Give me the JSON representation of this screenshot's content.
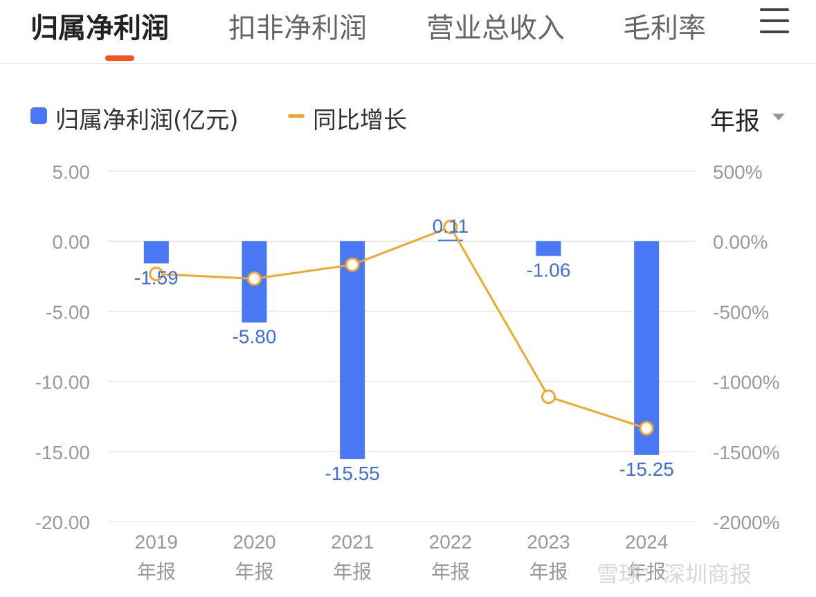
{
  "tabs": [
    {
      "label": "归属净利润",
      "active": true
    },
    {
      "label": "扣非净利润",
      "active": false
    },
    {
      "label": "营业总收入",
      "active": false
    },
    {
      "label": "毛利率",
      "active": false
    }
  ],
  "menu_icon": "menu-icon",
  "colors": {
    "bar": "#4a78f5",
    "line": "#f0a82a",
    "tab_indicator": "#f2561d",
    "bar_label": "#3d6fe0",
    "axis_label": "#999999",
    "grid": "#e8e8e8"
  },
  "period_selector": {
    "label": "年报"
  },
  "watermark": "雪球：深圳商报",
  "chart_data": {
    "type": "bar",
    "legend_placement": "top-left",
    "categories": [
      {
        "year": "2019",
        "period": "年报"
      },
      {
        "year": "2020",
        "period": "年报"
      },
      {
        "year": "2021",
        "period": "年报"
      },
      {
        "year": "2022",
        "period": "年报"
      },
      {
        "year": "2023",
        "period": "年报"
      },
      {
        "year": "2024",
        "period": "年报"
      }
    ],
    "series": [
      {
        "name": "归属净利润(亿元)",
        "type": "bar",
        "axis": "left",
        "values": [
          -1.59,
          -5.8,
          -15.55,
          0.11,
          -1.06,
          -15.25
        ],
        "labels": [
          "-1.59",
          "-5.80",
          "-15.55",
          "0.11",
          "-1.06",
          "-15.25"
        ]
      },
      {
        "name": "同比增长",
        "type": "line",
        "axis": "right",
        "values": [
          -234,
          -268,
          -168,
          101,
          -1110,
          -1335
        ]
      }
    ],
    "left_axis": {
      "ylim": [
        -20,
        5
      ],
      "ticks": [
        5,
        0,
        -5,
        -10,
        -15,
        -20
      ],
      "tick_labels": [
        "5.00",
        "0.00",
        "-5.00",
        "-10.00",
        "-15.00",
        "-20.00"
      ]
    },
    "right_axis": {
      "ylim": [
        -2000,
        500
      ],
      "ticks": [
        500,
        0,
        -500,
        -1000,
        -1500,
        -2000
      ],
      "tick_labels": [
        "500%",
        "0.00%",
        "-500%",
        "-1000%",
        "-1500%",
        "-2000%"
      ]
    },
    "grid": true
  }
}
